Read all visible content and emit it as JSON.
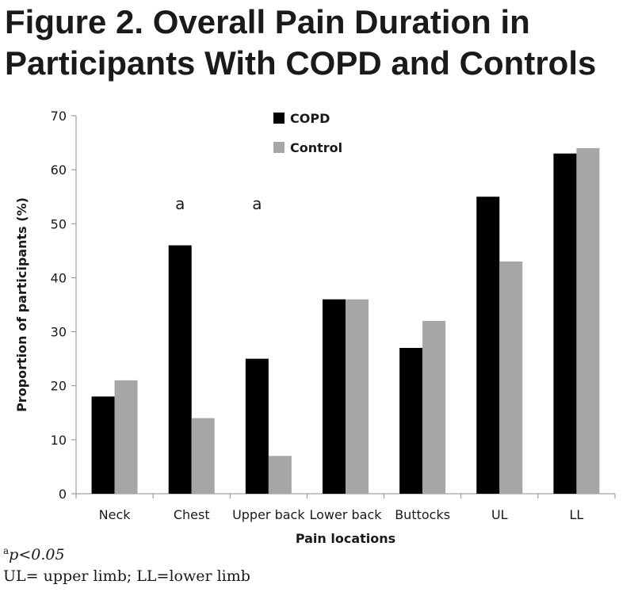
{
  "figure": {
    "title_line1": "Figure 2. Overall Pain Duration in",
    "title_line2": "Participants With COPD and Controls"
  },
  "chart_data": {
    "type": "bar",
    "categories": [
      "Neck",
      "Chest",
      "Upper back",
      "Lower back",
      "Buttocks",
      "UL",
      "LL"
    ],
    "series": [
      {
        "name": "COPD",
        "color": "#000000",
        "values": [
          18,
          46,
          25,
          36,
          27,
          55,
          63
        ]
      },
      {
        "name": "Control",
        "color": "#a6a6a6",
        "values": [
          21,
          14,
          7,
          36,
          32,
          43,
          64
        ]
      }
    ],
    "xlabel": "Pain locations",
    "ylabel": "Proportion of participants (%)",
    "ylim": [
      0,
      70
    ],
    "yticks": [
      0,
      10,
      20,
      30,
      40,
      50,
      60,
      70
    ],
    "grid": false,
    "legend_position": "top-center",
    "annotations": [
      {
        "category": "Chest",
        "text": "a"
      },
      {
        "category": "Upper back",
        "text": "a"
      }
    ]
  },
  "footnotes": {
    "sig_marker": "a",
    "sig_text": "p<0.05",
    "abbrev": "UL= upper limb; LL=lower limb"
  }
}
